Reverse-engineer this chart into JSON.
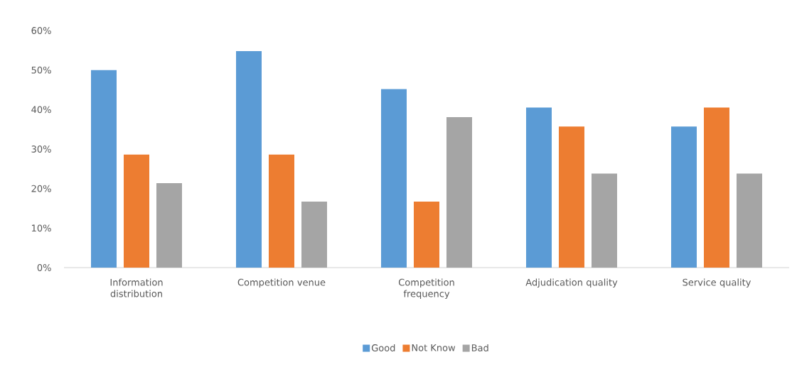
{
  "chart_data": {
    "type": "bar",
    "categories": [
      "Information distribution",
      "Competition venue",
      "Competition frequency",
      "Adjudication quality",
      "Service quality"
    ],
    "series": [
      {
        "name": "Good",
        "color": "#5b9bd5",
        "values": [
          50.0,
          54.8,
          45.2,
          40.5,
          35.7
        ]
      },
      {
        "name": "Not Know",
        "color": "#ed7d31",
        "values": [
          28.6,
          28.6,
          16.7,
          35.7,
          40.5
        ]
      },
      {
        "name": "Bad",
        "color": "#a5a5a5",
        "values": [
          21.4,
          16.7,
          38.1,
          23.8,
          23.8
        ]
      }
    ],
    "ylim": [
      0,
      60
    ],
    "yticks": [
      {
        "value": 0,
        "label": "0%"
      },
      {
        "value": 10,
        "label": "10%"
      },
      {
        "value": 20,
        "label": "20%"
      },
      {
        "value": 30,
        "label": "30%"
      },
      {
        "value": 40,
        "label": "40%"
      },
      {
        "value": 50,
        "label": "50%"
      },
      {
        "value": 60,
        "label": "60%"
      }
    ],
    "grid": false,
    "legend": "bottom"
  }
}
